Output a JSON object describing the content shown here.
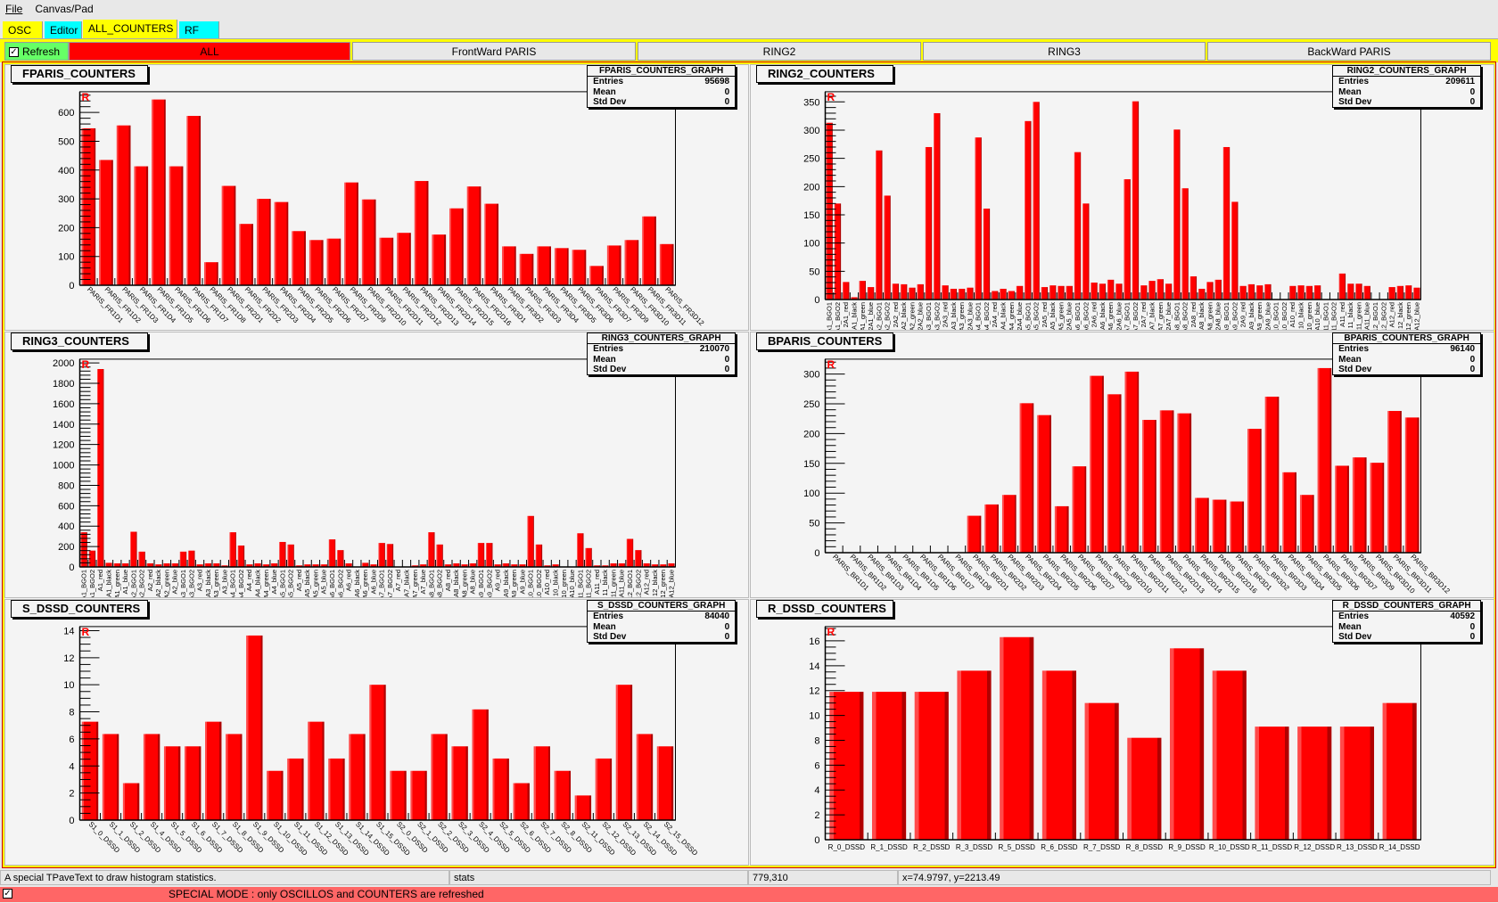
{
  "menu": [
    "File",
    "Canvas/Pad"
  ],
  "tabs": [
    {
      "label": "OSC",
      "color": "#ffff00"
    },
    {
      "label": "Editor",
      "color": "#00ffff"
    },
    {
      "label": "ALL_COUNTERS",
      "color": "#ffff00",
      "selected": true
    },
    {
      "label": "RF",
      "color": "#00ffff"
    }
  ],
  "buttons": {
    "refresh": "Refresh",
    "refresh_checked": true,
    "all": "ALL",
    "fpar": "FrontWard PARIS",
    "ring2": "RING2",
    "ring3": "RING3",
    "bpar": "BackWard PARIS",
    "all_color": "#ff0000",
    "refresh_color": "#66ff66"
  },
  "marker": "R",
  "chart_data": [
    {
      "type": "bar",
      "title": "FPARIS_COUNTERS",
      "stats": {
        "name": "FPARIS_COUNTERS_GRAPH",
        "entries": "95698",
        "mean": "0",
        "stddev": "0"
      },
      "ylim": [
        0,
        672
      ],
      "major": 100,
      "minor": 20,
      "labels": "angled",
      "categories": [
        "PARIS_FR1D1",
        "PARIS_FR1D2",
        "PARIS_FR1D3",
        "PARIS_FR1D4",
        "PARIS_FR1D5",
        "PARIS_FR1D6",
        "PARIS_FR1D7",
        "PARIS_FR1D8",
        "PARIS_FR2D1",
        "PARIS_FR2D2",
        "PARIS_FR2D3",
        "PARIS_FR2D4",
        "PARIS_FR2D5",
        "PARIS_FR2D6",
        "PARIS_FR2D7",
        "PARIS_FR2D9",
        "PARIS_FR2D10",
        "PARIS_FR2D11",
        "PARIS_FR2D12",
        "PARIS_FR2D13",
        "PARIS_FR2D14",
        "PARIS_FR2D15",
        "PARIS_FR2D16",
        "PARIS_FR3D1",
        "PARIS_FR3D2",
        "PARIS_FR3D3",
        "PARIS_FR3D4",
        "PARIS_FR3D5",
        "PARIS_FR3D6",
        "PARIS_FR3D7",
        "PARIS_FR3D9",
        "PARIS_FR3D10",
        "PARIS_FR3D11",
        "PARIS_FR3D12"
      ],
      "values": [
        545,
        435,
        555,
        413,
        645,
        413,
        588,
        80,
        345,
        213,
        300,
        289,
        188,
        157,
        162,
        357,
        298,
        165,
        182,
        362,
        176,
        267,
        343,
        283,
        135,
        109,
        135,
        129,
        123,
        67,
        138,
        157,
        239,
        143
      ]
    },
    {
      "type": "bar",
      "title": "RING2_COUNTERS",
      "stats": {
        "name": "RING2_COUNTERS_GRAPH",
        "entries": "209611",
        "mean": "0",
        "stddev": "0"
      },
      "ylim": [
        0,
        368
      ],
      "major": 50,
      "minor": 10,
      "labels": "vertical",
      "categories": [
        "A1_BGO1",
        "A1_BGO2",
        "2A1_red",
        "A1_black",
        "A1_green",
        "2A1_blue",
        "A2_BGO1",
        "A2_BGO2",
        "2A2_red",
        "A2_black",
        "A2_green",
        "2A2_blue",
        "A3_BGO1",
        "A3_BGO2",
        "2A3_red",
        "A3_black",
        "A3_green",
        "2A3_blue",
        "A4_BGO1",
        "A4_BGO2",
        "2A4_red",
        "A4_black",
        "A4_green",
        "2A4_blue",
        "A5_BGO1",
        "A5_BGO2",
        "2A5_red",
        "A5_black",
        "A5_green",
        "2A5_blue",
        "A6_BGO1",
        "A6_BGO2",
        "2A6_red",
        "A6_black",
        "A6_green",
        "2A6_blue",
        "A7_BGO1",
        "A7_BGO2",
        "2A7_red",
        "A7_black",
        "A7_green",
        "2A7_blue",
        "A8_BGO1",
        "A8_BGO2",
        "2A8_red",
        "A8_black",
        "A8_green",
        "2A8_blue",
        "A9_BGO1",
        "A9_BGO2",
        "2A9_red",
        "A9_black",
        "A9_green",
        "2A9_blue",
        "10_BGO1",
        "10_BGO2",
        "A10_red",
        "10_black",
        "10_green",
        "A10_blue",
        "11_BGO1",
        "11_BGO2",
        "A11_red",
        "11_black",
        "11_green",
        "A11_blue",
        "12_BGO1",
        "12_BGO2",
        "A12_red",
        "12_black",
        "12_green",
        "A12_blue"
      ],
      "values": [
        313,
        170,
        31,
        4,
        33,
        22,
        264,
        184,
        28,
        27,
        21,
        27,
        270,
        330,
        25,
        19,
        19,
        21,
        287,
        161,
        15,
        19,
        15,
        24,
        316,
        350,
        22,
        25,
        24,
        24,
        261,
        170,
        30,
        28,
        35,
        28,
        213,
        351,
        25,
        33,
        36,
        28,
        301,
        197,
        41,
        19,
        31,
        35,
        270,
        173,
        24,
        27,
        25,
        27,
        0,
        0,
        24,
        25,
        24,
        25,
        0,
        0,
        46,
        28,
        28,
        24,
        0,
        0,
        22,
        24,
        25,
        21
      ]
    },
    {
      "type": "bar",
      "title": "RING3_COUNTERS",
      "stats": {
        "name": "RING3_COUNTERS_GRAPH",
        "entries": "210070",
        "mean": "0",
        "stddev": "0"
      },
      "ylim": [
        0,
        2037
      ],
      "major": 200,
      "minor": 40,
      "labels": "vertical",
      "categories": [
        "A1_BGO1",
        "A1_BGO2",
        "A1_red",
        "A1_black",
        "A1_green",
        "A1_blue",
        "A2_BGO1",
        "A2_BGO2",
        "A2_red",
        "A2_black",
        "A2_green",
        "A2_blue",
        "A3_BGO1",
        "A3_BGO2",
        "A3_red",
        "A3_black",
        "A3_green",
        "A3_blue",
        "A4_BGO1",
        "A4_BGO2",
        "A4_red",
        "A4_black",
        "A4_green",
        "A4_blue",
        "A5_BGO1",
        "A5_BGO2",
        "A5_red",
        "A5_black",
        "A5_green",
        "A5_blue",
        "A6_BGO1",
        "A6_BGO2",
        "A6_red",
        "A6_black",
        "A6_green",
        "A6_blue",
        "A7_BGO1",
        "A7_BGO2",
        "A7_red",
        "A7_black",
        "A7_green",
        "A7_blue",
        "A8_BGO1",
        "A8_BGO2",
        "A8_red",
        "A8_black",
        "A8_green",
        "A8_blue",
        "A9_BGO1",
        "A9_BGO2",
        "A9_red",
        "A9_black",
        "A9_green",
        "A9_blue",
        "10_BGO1",
        "10_BGO2",
        "A10_red",
        "10_black",
        "10_green",
        "A10_blue",
        "11_BGO1",
        "11_BGO2",
        "A11_red",
        "11_black",
        "11_green",
        "A11_blue",
        "12_BGO1",
        "12_BGO2",
        "A12_red",
        "12_black",
        "12_green",
        "A12_blue"
      ],
      "values": [
        340,
        160,
        1940,
        40,
        35,
        35,
        345,
        150,
        35,
        25,
        35,
        35,
        150,
        160,
        25,
        35,
        35,
        15,
        340,
        210,
        25,
        35,
        25,
        35,
        245,
        220,
        15,
        25,
        25,
        25,
        270,
        165,
        35,
        0,
        40,
        25,
        235,
        225,
        0,
        0,
        15,
        25,
        340,
        220,
        25,
        35,
        25,
        35,
        235,
        235,
        25,
        35,
        25,
        25,
        500,
        220,
        15,
        25,
        0,
        0,
        330,
        185,
        15,
        15,
        35,
        35,
        275,
        165,
        35,
        25,
        25,
        35
      ]
    },
    {
      "type": "bar",
      "title": "BPARIS_COUNTERS",
      "stats": {
        "name": "BPARIS_COUNTERS_GRAPH",
        "entries": "96140",
        "mean": "0",
        "stddev": "0"
      },
      "ylim": [
        0,
        325
      ],
      "major": 50,
      "minor": 10,
      "labels": "angled",
      "categories": [
        "PARIS_BR1D1",
        "PARIS_BR1D2",
        "PARIS_BR1D3",
        "PARIS_BR1D4",
        "PARIS_BR1D5",
        "PARIS_BR1D6",
        "PARIS_BR1D7",
        "PARIS_BR1D8",
        "PARIS_BR2D1",
        "PARIS_BR2D2",
        "PARIS_BR2D3",
        "PARIS_BR2D4",
        "PARIS_BR2D5",
        "PARIS_BR2D6",
        "PARIS_BR2D7",
        "PARIS_BR2D9",
        "PARIS_BR2D10",
        "PARIS_BR2D11",
        "PARIS_BR2D12",
        "PARIS_BR2D13",
        "PARIS_BR2D14",
        "PARIS_BR2D15",
        "PARIS_BR2D16",
        "PARIS_BR3D1",
        "PARIS_BR3D2",
        "PARIS_BR3D3",
        "PARIS_BR3D4",
        "PARIS_BR3D5",
        "PARIS_BR3D6",
        "PARIS_BR3D7",
        "PARIS_BR3D9",
        "PARIS_BR3D10",
        "PARIS_BR3D11",
        "PARIS_BR3D12"
      ],
      "values": [
        0,
        0,
        0,
        0,
        0,
        0,
        0,
        0,
        62,
        81,
        97,
        251,
        231,
        78,
        145,
        297,
        266,
        304,
        223,
        239,
        234,
        92,
        89,
        86,
        208,
        262,
        135,
        97,
        310,
        146,
        160,
        151,
        238,
        227
      ]
    },
    {
      "type": "bar",
      "title": "S_DSSD_COUNTERS",
      "stats": {
        "name": "S_DSSD_COUNTERS_GRAPH",
        "entries": "84040",
        "mean": "0",
        "stddev": "0"
      },
      "ylim": [
        0,
        14.3
      ],
      "major": 2,
      "minor": 0.5,
      "labels": "angled",
      "categories": [
        "S1_0_DSSD",
        "S1_1_DSSD",
        "S1_2_DSSD",
        "S1_4_DSSD",
        "S1_5_DSSD",
        "S1_6_DSSD",
        "S1_7_DSSD",
        "S1_8_DSSD",
        "S1_9_DSSD",
        "S1_10_DSSD",
        "S1_11_DSSD",
        "S1_12_DSSD",
        "S1_13_DSSD",
        "S1_14_DSSD",
        "S1_15_DSSD",
        "S2_0_DSSD",
        "S2_1_DSSD",
        "S2_2_DSSD",
        "S2_3_DSSD",
        "S2_4_DSSD",
        "S2_5_DSSD",
        "S2_6_DSSD",
        "S2_7_DSSD",
        "S2_8_DSSD",
        "S2_11_DSSD",
        "S2_12_DSSD",
        "S2_13_DSSD",
        "S2_14_DSSD",
        "S2_15_DSSD"
      ],
      "values": [
        7.27,
        6.36,
        2.73,
        6.36,
        5.45,
        5.45,
        7.27,
        6.36,
        13.64,
        3.64,
        4.55,
        7.27,
        4.55,
        6.36,
        10,
        3.64,
        3.64,
        6.36,
        5.45,
        8.18,
        4.55,
        2.73,
        5.45,
        3.64,
        1.82,
        4.55,
        10,
        6.36,
        5.45
      ]
    },
    {
      "type": "bar",
      "title": "R_DSSD_COUNTERS",
      "stats": {
        "name": "R_DSSD_COUNTERS_GRAPH",
        "entries": "40592",
        "mean": "0",
        "stddev": "0"
      },
      "ylim": [
        0,
        17.15
      ],
      "major": 2,
      "minor": 0.5,
      "labels": "horizontal",
      "categories": [
        "R_0_DSSD",
        "R_1_DSSD",
        "R_2_DSSD",
        "R_3_DSSD",
        "R_5_DSSD",
        "R_6_DSSD",
        "R_7_DSSD",
        "R_8_DSSD",
        "R_9_DSSD",
        "R_10_DSSD",
        "R_11_DSSD",
        "R_12_DSSD",
        "R_13_DSSD",
        "R_14_DSSD"
      ],
      "values": [
        11.9,
        11.9,
        11.9,
        13.6,
        16.3,
        13.6,
        11,
        8.2,
        15.4,
        13.6,
        9.1,
        9.1,
        9.1,
        11
      ]
    }
  ],
  "stats_labels": {
    "entries": "Entries",
    "mean": "Mean",
    "stddev": "Std Dev"
  },
  "status": {
    "object_info": "A special TPaveText to draw histogram statistics.",
    "object_name": "stats",
    "pixel": "779,310",
    "coords": "x=74.9797, y=2213.49"
  },
  "special_mode": {
    "checked": true,
    "text": "SPECIAL MODE : only OSCILLOS and COUNTERS are refreshed",
    "color": "#ff6666"
  }
}
